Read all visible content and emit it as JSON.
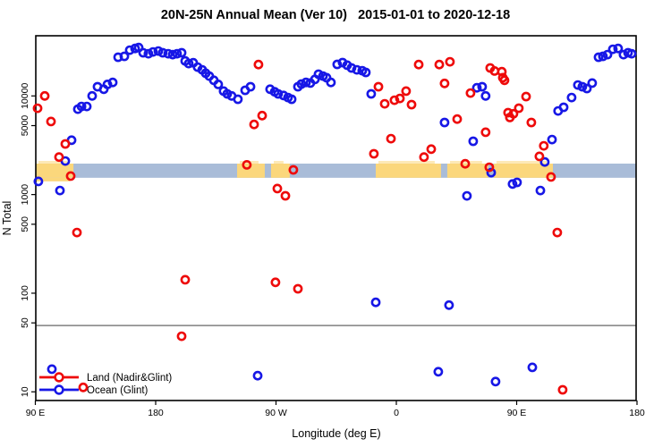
{
  "title": "20N-25N Annual Mean (Ver 10)   2015-01-01 to 2020-12-18",
  "chart_data": {
    "type": "scatter",
    "xlabel": "Longitude (deg E)",
    "ylabel": "N Total",
    "x_axis": {
      "note": "longitude axis spans 450 degrees starting at 90E",
      "range_deg": [
        0,
        450
      ],
      "ticks": [
        {
          "pos": 0,
          "label": "90 E"
        },
        {
          "pos": 90,
          "label": "180"
        },
        {
          "pos": 180,
          "label": "90 W"
        },
        {
          "pos": 270,
          "label": "0"
        },
        {
          "pos": 360,
          "label": "90 E"
        },
        {
          "pos": 450,
          "label": "180"
        }
      ]
    },
    "y_axis": {
      "scale": "log10",
      "range": [
        8.2,
        40000
      ],
      "ticks": [
        {
          "v": 10000,
          "label": "10000"
        },
        {
          "v": 5000,
          "label": "5000"
        },
        {
          "v": 1000,
          "label": "1000"
        },
        {
          "v": 500,
          "label": "500"
        },
        {
          "v": 100,
          "label": "100"
        },
        {
          "v": 50,
          "label": "50"
        },
        {
          "v": 10,
          "label": "10"
        }
      ]
    },
    "reference_line": {
      "n": 50,
      "color": "#7f7f7f"
    },
    "surface_band": {
      "n_top": 2060,
      "n_bottom": 1480,
      "ocean_color": "#a9bcd8",
      "land_color": "#fbd77c",
      "land_segments_deg": [
        [
          0,
          28.5
        ],
        [
          150.9,
          171.6
        ],
        [
          176.3,
          190.3
        ],
        [
          254.6,
          303.4
        ],
        [
          308.1,
          338.8
        ],
        [
          342.9,
          387.1
        ]
      ]
    },
    "series": [
      {
        "name": "Ocean (Glint)",
        "color": "#1717e6",
        "points": [
          [
            2.3,
            1360
          ],
          [
            18.4,
            1100
          ],
          [
            22.4,
            2190
          ],
          [
            27.1,
            3560
          ],
          [
            31.8,
            7340
          ],
          [
            34.5,
            7810
          ],
          [
            38.5,
            7810
          ],
          [
            42.5,
            9990
          ],
          [
            46.5,
            12400
          ],
          [
            51.2,
            11700
          ],
          [
            53.9,
            13100
          ],
          [
            57.9,
            13700
          ],
          [
            61.9,
            24700
          ],
          [
            66.6,
            25200
          ],
          [
            70.6,
            29100
          ],
          [
            74.6,
            30300
          ],
          [
            77.3,
            30900
          ],
          [
            80.6,
            27400
          ],
          [
            84.6,
            26800
          ],
          [
            88.0,
            27900
          ],
          [
            92.0,
            28500
          ],
          [
            95.3,
            27400
          ],
          [
            99.4,
            26800
          ],
          [
            102.7,
            26200
          ],
          [
            106.0,
            26800
          ],
          [
            109.4,
            27400
          ],
          [
            112.1,
            22600
          ],
          [
            114.7,
            21300
          ],
          [
            118.1,
            21700
          ],
          [
            121.4,
            19600
          ],
          [
            124.8,
            18400
          ],
          [
            127.4,
            17000
          ],
          [
            130.1,
            15900
          ],
          [
            133.5,
            14400
          ],
          [
            136.8,
            13100
          ],
          [
            140.8,
            11200
          ],
          [
            143.5,
            10500
          ],
          [
            146.8,
            9990
          ],
          [
            151.5,
            9250
          ],
          [
            156.9,
            11400
          ],
          [
            160.9,
            12400
          ],
          [
            175.6,
            11700
          ],
          [
            179.0,
            11000
          ],
          [
            181.6,
            10500
          ],
          [
            185.6,
            10100
          ],
          [
            189.0,
            9640
          ],
          [
            191.7,
            9250
          ],
          [
            196.4,
            12400
          ],
          [
            199.0,
            13200
          ],
          [
            202.4,
            13700
          ],
          [
            205.7,
            13500
          ],
          [
            209.1,
            14700
          ],
          [
            211.8,
            16600
          ],
          [
            215.1,
            15900
          ],
          [
            217.8,
            15300
          ],
          [
            221.1,
            13700
          ],
          [
            225.8,
            20900
          ],
          [
            229.8,
            21800
          ],
          [
            233.2,
            20500
          ],
          [
            236.5,
            19200
          ],
          [
            240.5,
            18400
          ],
          [
            244.5,
            18000
          ],
          [
            247.2,
            17300
          ],
          [
            251.2,
            10500
          ],
          [
            306.1,
            5380
          ],
          [
            327.5,
            3470
          ],
          [
            330.2,
            12100
          ],
          [
            334.2,
            12400
          ],
          [
            336.8,
            9990
          ],
          [
            340.9,
            1670
          ],
          [
            356.9,
            1280
          ],
          [
            360.3,
            1330
          ],
          [
            377.7,
            1100
          ],
          [
            322.8,
            970
          ],
          [
            386.4,
            3610
          ],
          [
            381.0,
            2140
          ],
          [
            391.0,
            7040
          ],
          [
            395.1,
            7670
          ],
          [
            401.1,
            9640
          ],
          [
            405.8,
            12900
          ],
          [
            409.1,
            12400
          ],
          [
            412.5,
            11900
          ],
          [
            416.5,
            13500
          ],
          [
            421.2,
            24700
          ],
          [
            424.5,
            25200
          ],
          [
            427.9,
            26200
          ],
          [
            431.9,
            29700
          ],
          [
            435.9,
            30300
          ],
          [
            439.9,
            26200
          ],
          [
            443.3,
            27400
          ],
          [
            446.0,
            26800
          ],
          [
            254.6,
            80.7
          ],
          [
            309.4,
            75.7
          ],
          [
            166.3,
            14.6
          ],
          [
            301.4,
            16.0
          ],
          [
            371.7,
            17.7
          ],
          [
            344.2,
            12.7
          ],
          [
            12.4,
            17.0
          ]
        ]
      },
      {
        "name": "Land (Nadir&Glint)",
        "color": "#ee0a0a",
        "points": [
          [
            7.0,
            10000
          ],
          [
            1.7,
            7500
          ],
          [
            11.7,
            5500
          ],
          [
            22.4,
            3260
          ],
          [
            17.7,
            2400
          ],
          [
            26.4,
            1540
          ],
          [
            31.1,
            412
          ],
          [
            112.1,
            137
          ],
          [
            109.4,
            36.6
          ],
          [
            166.9,
            20800
          ],
          [
            169.6,
            6320
          ],
          [
            163.6,
            5140
          ],
          [
            158.2,
            2000
          ],
          [
            193.0,
            1780
          ],
          [
            181.0,
            1150
          ],
          [
            187.0,
            972
          ],
          [
            179.6,
            129
          ],
          [
            196.4,
            111
          ],
          [
            256.6,
            12400
          ],
          [
            261.3,
            8330
          ],
          [
            268.6,
            9050
          ],
          [
            272.7,
            9430
          ],
          [
            277.3,
            11200
          ],
          [
            281.4,
            8160
          ],
          [
            286.7,
            20800
          ],
          [
            302.1,
            20800
          ],
          [
            310.1,
            22200
          ],
          [
            306.1,
            13400
          ],
          [
            315.5,
            5820
          ],
          [
            266.0,
            3690
          ],
          [
            253.2,
            2590
          ],
          [
            290.7,
            2400
          ],
          [
            296.1,
            2890
          ],
          [
            336.8,
            4290
          ],
          [
            325.5,
            10700
          ],
          [
            340.2,
            19200
          ],
          [
            343.5,
            17900
          ],
          [
            349.6,
            15300
          ],
          [
            353.6,
            6770
          ],
          [
            321.5,
            2050
          ],
          [
            339.5,
            1890
          ],
          [
            348.9,
            17600
          ],
          [
            350.9,
            14400
          ],
          [
            367.0,
            9850
          ],
          [
            361.6,
            7510
          ],
          [
            357.6,
            6590
          ],
          [
            354.9,
            6050
          ],
          [
            371.0,
            5380
          ],
          [
            380.3,
            3120
          ],
          [
            377.0,
            2440
          ],
          [
            385.7,
            1510
          ],
          [
            390.4,
            412
          ],
          [
            394.4,
            10.5
          ],
          [
            35.8,
            11.1
          ]
        ]
      }
    ],
    "legend": {
      "position": "bottom-left",
      "items": [
        {
          "label": "Land (Nadir&Glint)",
          "color": "#ee0a0a"
        },
        {
          "label": "Ocean (Glint)",
          "color": "#1717e6"
        }
      ]
    }
  }
}
